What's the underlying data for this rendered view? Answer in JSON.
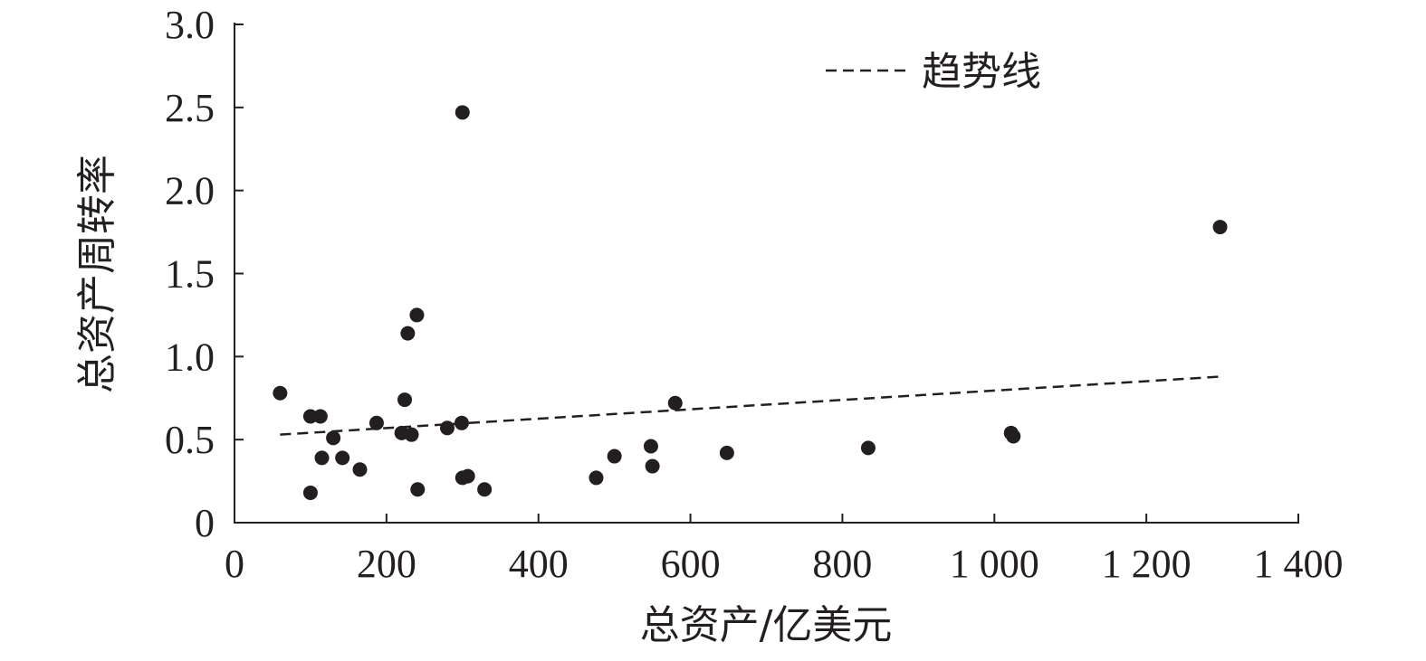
{
  "chart_data": {
    "type": "scatter",
    "xlabel": "总资产/亿美元",
    "ylabel": "总资产周转率",
    "xlim": [
      0,
      1400
    ],
    "ylim": [
      0,
      3.0
    ],
    "x_ticks": [
      {
        "value": 0,
        "label": "0"
      },
      {
        "value": 200,
        "label": "200"
      },
      {
        "value": 400,
        "label": "400"
      },
      {
        "value": 600,
        "label": "600"
      },
      {
        "value": 800,
        "label": "800"
      },
      {
        "value": 1000,
        "label": "1 000"
      },
      {
        "value": 1200,
        "label": "1 200"
      },
      {
        "value": 1400,
        "label": "1 400"
      }
    ],
    "y_ticks": [
      {
        "value": 0,
        "label": "0"
      },
      {
        "value": 0.5,
        "label": "0.5"
      },
      {
        "value": 1.0,
        "label": "1.0"
      },
      {
        "value": 1.5,
        "label": "1.5"
      },
      {
        "value": 2.0,
        "label": "2.0"
      },
      {
        "value": 2.5,
        "label": "2.5"
      },
      {
        "value": 3.0,
        "label": "3.0"
      }
    ],
    "grid": false,
    "legend": {
      "placement": "top-right",
      "entries": [
        {
          "label": "趋势线",
          "style": "dashed"
        }
      ]
    },
    "trendline": {
      "x": [
        60,
        1300
      ],
      "y": [
        0.53,
        0.88
      ]
    },
    "points": [
      {
        "x": 60,
        "y": 0.78
      },
      {
        "x": 100,
        "y": 0.64
      },
      {
        "x": 100,
        "y": 0.18
      },
      {
        "x": 113,
        "y": 0.64
      },
      {
        "x": 115,
        "y": 0.39
      },
      {
        "x": 130,
        "y": 0.51
      },
      {
        "x": 142,
        "y": 0.39
      },
      {
        "x": 165,
        "y": 0.32
      },
      {
        "x": 187,
        "y": 0.6
      },
      {
        "x": 220,
        "y": 0.54
      },
      {
        "x": 224,
        "y": 0.74
      },
      {
        "x": 228,
        "y": 1.14
      },
      {
        "x": 233,
        "y": 0.53
      },
      {
        "x": 240,
        "y": 1.25
      },
      {
        "x": 241,
        "y": 0.2
      },
      {
        "x": 280,
        "y": 0.57
      },
      {
        "x": 299,
        "y": 0.6
      },
      {
        "x": 300,
        "y": 2.47
      },
      {
        "x": 300,
        "y": 0.27
      },
      {
        "x": 307,
        "y": 0.28
      },
      {
        "x": 329,
        "y": 0.2
      },
      {
        "x": 476,
        "y": 0.27
      },
      {
        "x": 500,
        "y": 0.4
      },
      {
        "x": 548,
        "y": 0.46
      },
      {
        "x": 550,
        "y": 0.34
      },
      {
        "x": 580,
        "y": 0.72
      },
      {
        "x": 648,
        "y": 0.42
      },
      {
        "x": 834,
        "y": 0.45
      },
      {
        "x": 1022,
        "y": 0.54
      },
      {
        "x": 1025,
        "y": 0.52
      },
      {
        "x": 1297,
        "y": 1.78
      }
    ]
  }
}
